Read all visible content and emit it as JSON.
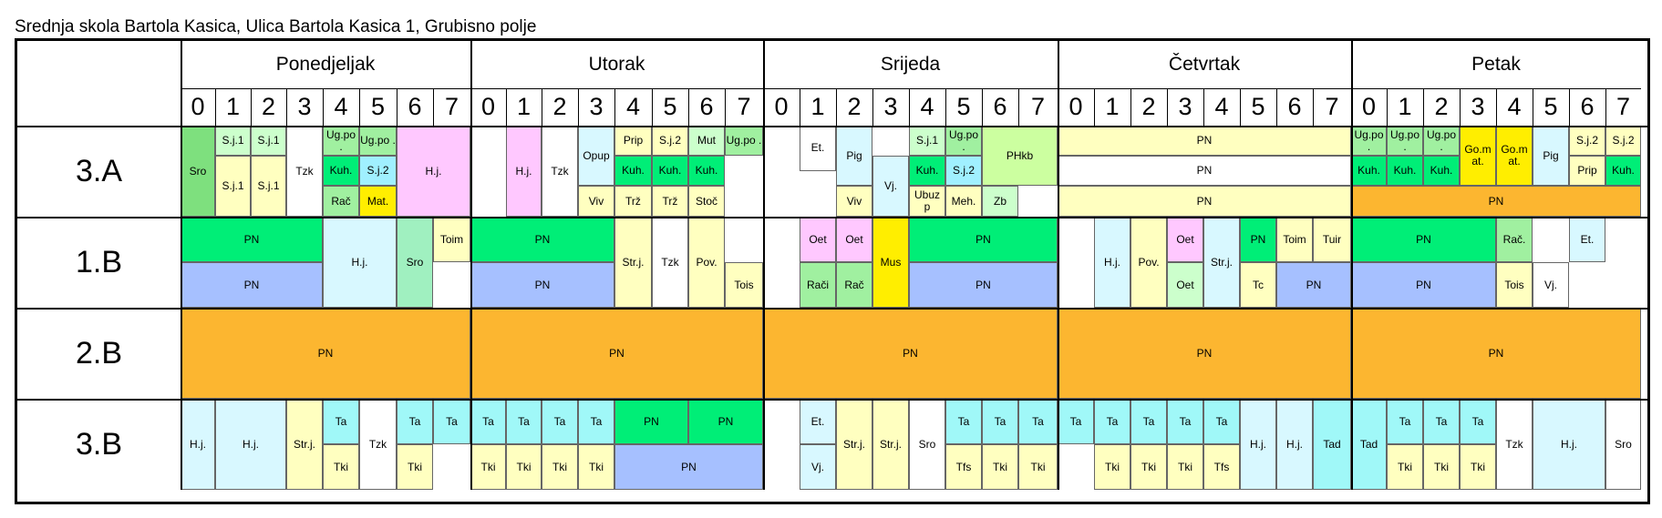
{
  "title": "Srednja skola Bartola Kasica, Ulica Bartola Kasica 1, Grubisno polje",
  "days": [
    "Ponedjeljak",
    "Utorak",
    "Srijeda",
    "Četvrtak",
    "Petak"
  ],
  "periods": [
    "0",
    "1",
    "2",
    "3",
    "4",
    "5",
    "6",
    "7"
  ],
  "classes": [
    "3.A",
    "1.B",
    "2.B",
    "3.B"
  ],
  "cells": [
    {
      "c": 0,
      "r": 0,
      "t": "Sro",
      "col": "#7ee07e"
    },
    {
      "c": 1,
      "r": 0,
      "t": "S.j.1",
      "col": "#ccffcc"
    },
    {
      "c": 2,
      "r": 0,
      "t": "S.j.1",
      "col": "#ccffcc"
    },
    {
      "c": 1,
      "r": 1,
      "t": "S.j.1",
      "col": "#ffffc0"
    },
    {
      "c": 2,
      "r": 1,
      "t": "S.j.1",
      "col": "#ffffc0"
    },
    {
      "c": 3,
      "r": 0,
      "t": "Tzk",
      "col": "#ffffff"
    },
    {
      "c": 4,
      "r": 0,
      "t": "Ug.po .",
      "col": "#a0f0a0"
    },
    {
      "c": 5,
      "r": 0,
      "t": "Ug.po .",
      "col": "#a0f0a0"
    },
    {
      "c": 4,
      "r": 1,
      "t": "Kuh.",
      "col": "#00ee77"
    },
    {
      "c": 5,
      "r": 1,
      "t": "S.j.2",
      "col": "#a0f0ff"
    },
    {
      "c": 4,
      "r": 2,
      "t": "Rač",
      "col": "#a0f0a0"
    },
    {
      "c": 5,
      "r": 2,
      "t": "Mat.",
      "col": "#ffee00"
    },
    {
      "c": 6,
      "r": 0,
      "t": "H.j.",
      "col": "#ffc8ff"
    },
    {
      "c": 9,
      "r": 0,
      "t": "H.j.",
      "col": "#ffc8ff"
    },
    {
      "c": 10,
      "r": 0,
      "t": "Tzk",
      "col": "#ffffff"
    },
    {
      "c": 11,
      "r": 0,
      "t": "Opup",
      "col": "#d8f8ff"
    },
    {
      "c": 11,
      "r": 2,
      "t": "Viv",
      "col": "#ffffc0"
    },
    {
      "c": 12,
      "r": 0,
      "t": "Prip",
      "col": "#ffffc0"
    },
    {
      "c": 13,
      "r": 0,
      "t": "S.j.2",
      "col": "#ffffc0"
    },
    {
      "c": 14,
      "r": 0,
      "t": "Mut",
      "col": "#ccffcc"
    },
    {
      "c": 15,
      "r": 0,
      "t": "Ug.po .",
      "col": "#a0f0a0"
    },
    {
      "c": 12,
      "r": 1,
      "t": "Kuh.",
      "col": "#00ee77"
    },
    {
      "c": 13,
      "r": 1,
      "t": "Kuh.",
      "col": "#00ee77"
    },
    {
      "c": 14,
      "r": 1,
      "t": "Kuh.",
      "col": "#00ee77"
    },
    {
      "c": 12,
      "r": 2,
      "t": "Trž",
      "col": "#ffffc0"
    },
    {
      "c": 13,
      "r": 2,
      "t": "Trž",
      "col": "#ffffc0"
    },
    {
      "c": 14,
      "r": 2,
      "t": "Stoč",
      "col": "#ffffc0"
    },
    {
      "c": 17,
      "r": 0,
      "t": "Et.",
      "col": "#ffffff"
    },
    {
      "c": 18,
      "r": 0,
      "t": "Pig",
      "col": "#d8f8ff"
    },
    {
      "c": 18,
      "r": 2,
      "t": "Viv",
      "col": "#ffffc0"
    },
    {
      "c": 19,
      "r": 1,
      "t": "Vj.",
      "col": "#d8f8ff"
    },
    {
      "c": 20,
      "r": 0,
      "t": "S.j.1",
      "col": "#ccffcc"
    },
    {
      "c": 21,
      "r": 0,
      "t": "Ug.po .",
      "col": "#a0f0a0"
    },
    {
      "c": 20,
      "r": 1,
      "t": "Kuh.",
      "col": "#00ee77"
    },
    {
      "c": 21,
      "r": 1,
      "t": "S.j.2",
      "col": "#a0f0ff"
    },
    {
      "c": 20,
      "r": 2,
      "t": "Ubuz p",
      "col": "#ffffc0"
    },
    {
      "c": 21,
      "r": 2,
      "t": "Meh.",
      "col": "#ffffc0"
    },
    {
      "c": 22,
      "r": 0,
      "t": "PHkb",
      "col": "#ccffa0"
    },
    {
      "c": 22,
      "r": 2,
      "t": "Zb",
      "col": "#ccffcc"
    },
    {
      "c": 24,
      "r": 0,
      "t": "PN",
      "col": "#ffffc0"
    },
    {
      "c": 24,
      "r": 1,
      "t": "PN",
      "col": "#ffffff"
    },
    {
      "c": 24,
      "r": 2,
      "t": "PN",
      "col": "#ffffc0"
    },
    {
      "c": 32,
      "r": 0,
      "t": "Ug.po .",
      "col": "#a0f0a0"
    },
    {
      "c": 33,
      "r": 0,
      "t": "Ug.po .",
      "col": "#a0f0a0"
    },
    {
      "c": 34,
      "r": 0,
      "t": "Ug.po .",
      "col": "#a0f0a0"
    },
    {
      "c": 32,
      "r": 1,
      "t": "Kuh.",
      "col": "#00ee77"
    },
    {
      "c": 33,
      "r": 1,
      "t": "Kuh.",
      "col": "#00ee77"
    },
    {
      "c": 34,
      "r": 1,
      "t": "Kuh.",
      "col": "#00ee77"
    },
    {
      "c": 35,
      "r": 0,
      "t": "Go.m at.",
      "col": "#ffee00"
    },
    {
      "c": 36,
      "r": 0,
      "t": "Go.m at.",
      "col": "#ffee00"
    },
    {
      "c": 37,
      "r": 0,
      "t": "Pig",
      "col": "#d8f8ff"
    },
    {
      "c": 38,
      "r": 0,
      "t": "S.j.2",
      "col": "#ffffc0"
    },
    {
      "c": 39,
      "r": 0,
      "t": "S.j.2",
      "col": "#ffffc0"
    },
    {
      "c": 38,
      "r": 1,
      "t": "Prip",
      "col": "#ffffc0"
    },
    {
      "c": 39,
      "r": 1,
      "t": "Kuh.",
      "col": "#00ee77"
    },
    {
      "c": 32,
      "r": 2,
      "t": "PN",
      "col": "#fcb630"
    },
    {
      "c": 0,
      "r": 0,
      "t": "PN",
      "col": "#00ee77"
    },
    {
      "c": 0,
      "r": 1,
      "t": "PN",
      "col": "#a6c0ff"
    },
    {
      "c": 4,
      "r": 0,
      "t": "H.j.",
      "col": "#d8f8ff"
    },
    {
      "c": 6,
      "r": 0,
      "t": "Sro",
      "col": "#a0f0c0"
    },
    {
      "c": 7,
      "r": 0,
      "t": "Toim",
      "col": "#ffffc0"
    },
    {
      "c": 8,
      "r": 0,
      "t": "PN",
      "col": "#00ee77"
    },
    {
      "c": 8,
      "r": 1,
      "t": "PN",
      "col": "#a6c0ff"
    },
    {
      "c": 12,
      "r": 0,
      "t": "Str.j.",
      "col": "#ffffc0"
    },
    {
      "c": 13,
      "r": 0,
      "t": "Tzk",
      "col": "#ffffff"
    },
    {
      "c": 14,
      "r": 0,
      "t": "Pov.",
      "col": "#ffffc0"
    },
    {
      "c": 15,
      "r": 1,
      "t": "Tois",
      "col": "#ffffc0"
    },
    {
      "c": 17,
      "r": 0,
      "t": "Oet",
      "col": "#ffc8ff"
    },
    {
      "c": 18,
      "r": 0,
      "t": "Oet",
      "col": "#ffc8ff"
    },
    {
      "c": 17,
      "r": 1,
      "t": "Rači",
      "col": "#a0f0a0"
    },
    {
      "c": 18,
      "r": 1,
      "t": "Rač",
      "col": "#a0f0a0"
    },
    {
      "c": 19,
      "r": 0,
      "t": "Mus",
      "col": "#ffee00"
    },
    {
      "c": 20,
      "r": 0,
      "t": "PN",
      "col": "#00ee77"
    },
    {
      "c": 20,
      "r": 1,
      "t": "PN",
      "col": "#a6c0ff"
    },
    {
      "c": 25,
      "r": 0,
      "t": "H.j.",
      "col": "#d8f8ff"
    },
    {
      "c": 26,
      "r": 0,
      "t": "Pov.",
      "col": "#ffffc0"
    },
    {
      "c": 27,
      "r": 0,
      "t": "Oet",
      "col": "#ffc8ff"
    },
    {
      "c": 27,
      "r": 1,
      "t": "Oet",
      "col": "#ccffcc"
    },
    {
      "c": 28,
      "r": 0,
      "t": "Str.j.",
      "col": "#d8f8ff"
    },
    {
      "c": 29,
      "r": 0,
      "t": "PN",
      "col": "#00ee77"
    },
    {
      "c": 30,
      "r": 0,
      "t": "Toim",
      "col": "#ffffc0"
    },
    {
      "c": 31,
      "r": 0,
      "t": "Tuir",
      "col": "#ffffc0"
    },
    {
      "c": 29,
      "r": 1,
      "t": "Tc",
      "col": "#ffffc0"
    },
    {
      "c": 30,
      "r": 1,
      "t": "PN",
      "col": "#a6c0ff"
    },
    {
      "c": 32,
      "r": 0,
      "t": "PN",
      "col": "#00ee77"
    },
    {
      "c": 32,
      "r": 1,
      "t": "PN",
      "col": "#a6c0ff"
    },
    {
      "c": 36,
      "r": 0,
      "t": "Rač.",
      "col": "#a0f0a0"
    },
    {
      "c": 38,
      "r": 0,
      "t": "Et.",
      "col": "#d8f8ff"
    },
    {
      "c": 36,
      "r": 1,
      "t": "Tois",
      "col": "#ffffc0"
    },
    {
      "c": 37,
      "r": 1,
      "t": "Vj.",
      "col": "#ffffff"
    },
    {
      "c": 0,
      "t": "PN",
      "col": "#fcb630"
    },
    {
      "c": 8,
      "t": "PN",
      "col": "#fcb630"
    },
    {
      "c": 16,
      "t": "PN",
      "col": "#fcb630"
    },
    {
      "c": 24,
      "t": "PN",
      "col": "#fcb630"
    },
    {
      "c": 32,
      "t": "PN",
      "col": "#fcb630"
    },
    {
      "c": 0,
      "t": "H.j.",
      "col": "#d8f8ff"
    },
    {
      "c": 1,
      "t": "H.j.",
      "col": "#d8f8ff"
    },
    {
      "c": 3,
      "t": "Str.j.",
      "col": "#ffffc0"
    },
    {
      "c": 4,
      "r": 0,
      "t": "Ta",
      "col": "#a0f8f8"
    },
    {
      "c": 4,
      "r": 1,
      "t": "Tki",
      "col": "#ffffc0"
    },
    {
      "c": 5,
      "t": "Tzk",
      "col": "#ffffff"
    },
    {
      "c": 6,
      "r": 0,
      "t": "Ta",
      "col": "#a0f8f8"
    },
    {
      "c": 6,
      "r": 1,
      "t": "Tki",
      "col": "#ffffc0"
    },
    {
      "c": 7,
      "r": 0,
      "t": "Ta",
      "col": "#a0f8f8"
    },
    {
      "c": 8,
      "r": 0,
      "t": "Ta",
      "col": "#a0f8f8"
    },
    {
      "c": 9,
      "r": 0,
      "t": "Ta",
      "col": "#a0f8f8"
    },
    {
      "c": 10,
      "r": 0,
      "t": "Ta",
      "col": "#a0f8f8"
    },
    {
      "c": 11,
      "r": 0,
      "t": "Ta",
      "col": "#a0f8f8"
    },
    {
      "c": 8,
      "r": 1,
      "t": "Tki",
      "col": "#ffffc0"
    },
    {
      "c": 9,
      "r": 1,
      "t": "Tki",
      "col": "#ffffc0"
    },
    {
      "c": 10,
      "r": 1,
      "t": "Tki",
      "col": "#ffffc0"
    },
    {
      "c": 11,
      "r": 1,
      "t": "Tki",
      "col": "#ffffc0"
    },
    {
      "c": 12,
      "r": 0,
      "t": "PN",
      "col": "#00ee77"
    },
    {
      "c": 14,
      "r": 0,
      "t": "PN",
      "col": "#00ee77"
    },
    {
      "c": 12,
      "r": 1,
      "t": "PN",
      "col": "#a6c0ff"
    },
    {
      "c": 17,
      "r": 0,
      "t": "Et.",
      "col": "#d8f8ff"
    },
    {
      "c": 17,
      "r": 1,
      "t": "Vj.",
      "col": "#d8f8ff"
    },
    {
      "c": 18,
      "t": "Str.j.",
      "col": "#ffffc0"
    },
    {
      "c": 19,
      "t": "Str.j.",
      "col": "#ffffc0"
    },
    {
      "c": 20,
      "t": "Sro",
      "col": "#ffffff"
    },
    {
      "c": 21,
      "r": 0,
      "t": "Ta",
      "col": "#a0f8f8"
    },
    {
      "c": 22,
      "r": 0,
      "t": "Ta",
      "col": "#a0f8f8"
    },
    {
      "c": 23,
      "r": 0,
      "t": "Ta",
      "col": "#a0f8f8"
    },
    {
      "c": 21,
      "r": 1,
      "t": "Tfs",
      "col": "#ffffc0"
    },
    {
      "c": 22,
      "r": 1,
      "t": "Tki",
      "col": "#ffffc0"
    },
    {
      "c": 23,
      "r": 1,
      "t": "Tki",
      "col": "#ffffc0"
    },
    {
      "c": 24,
      "r": 0,
      "t": "Ta",
      "col": "#a0f8f8"
    },
    {
      "c": 25,
      "r": 0,
      "t": "Ta",
      "col": "#a0f8f8"
    },
    {
      "c": 26,
      "r": 0,
      "t": "Ta",
      "col": "#a0f8f8"
    },
    {
      "c": 27,
      "r": 0,
      "t": "Ta",
      "col": "#a0f8f8"
    },
    {
      "c": 28,
      "r": 0,
      "t": "Ta",
      "col": "#a0f8f8"
    },
    {
      "c": 25,
      "r": 1,
      "t": "Tki",
      "col": "#ffffc0"
    },
    {
      "c": 26,
      "r": 1,
      "t": "Tki",
      "col": "#ffffc0"
    },
    {
      "c": 27,
      "r": 1,
      "t": "Tki",
      "col": "#ffffc0"
    },
    {
      "c": 28,
      "r": 1,
      "t": "Tfs",
      "col": "#ffffc0"
    },
    {
      "c": 29,
      "t": "H.j.",
      "col": "#d8f8ff"
    },
    {
      "c": 30,
      "t": "H.j.",
      "col": "#d8f8ff"
    },
    {
      "c": 31,
      "t": "Tad",
      "col": "#a0f8f8"
    },
    {
      "c": 32,
      "t": "Tad",
      "col": "#a0f8f8"
    },
    {
      "c": 33,
      "r": 0,
      "t": "Ta",
      "col": "#a0f8f8"
    },
    {
      "c": 34,
      "r": 0,
      "t": "Ta",
      "col": "#a0f8f8"
    },
    {
      "c": 35,
      "r": 0,
      "t": "Ta",
      "col": "#a0f8f8"
    },
    {
      "c": 33,
      "r": 1,
      "t": "Tki",
      "col": "#ffffc0"
    },
    {
      "c": 34,
      "r": 1,
      "t": "Tki",
      "col": "#ffffc0"
    },
    {
      "c": 35,
      "r": 1,
      "t": "Tki",
      "col": "#ffffc0"
    },
    {
      "c": 36,
      "t": "Tzk",
      "col": "#ffffff"
    },
    {
      "c": 37,
      "t": "H.j.",
      "col": "#d8f8ff"
    },
    {
      "c": 39,
      "t": "Sro",
      "col": "#ffffff"
    }
  ]
}
